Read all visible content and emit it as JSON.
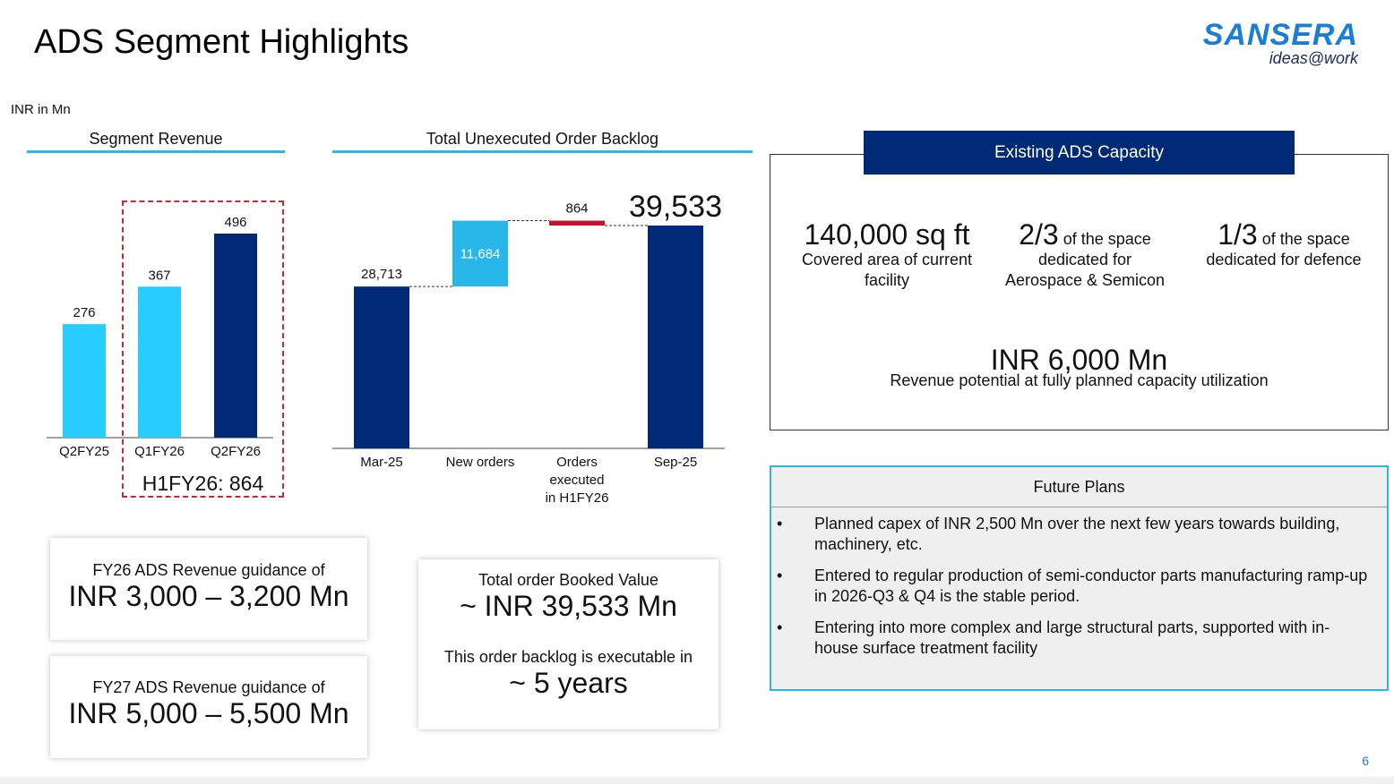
{
  "title": "ADS Segment Highlights",
  "logo": {
    "main": "SANSERA",
    "sub": "ideas@work"
  },
  "unit_note": "INR in Mn",
  "segment_revenue": {
    "heading": "Segment Revenue",
    "highlight_label": "H1FY26: 864"
  },
  "backlog": {
    "heading": "Total Unexecuted Order Backlog"
  },
  "chart_data": [
    {
      "type": "bar",
      "title": "Segment Revenue",
      "categories": [
        "Q2FY25",
        "Q1FY26",
        "Q2FY26"
      ],
      "values": [
        276,
        367,
        496
      ],
      "value_labels": [
        "276",
        "367",
        "496"
      ],
      "colors": [
        "#29ccff",
        "#29ccff",
        "#002a75"
      ]
    },
    {
      "type": "waterfall",
      "title": "Total Unexecuted Order Backlog",
      "categories": [
        "Mar-25",
        "New orders",
        "Orders executed in H1FY26",
        "Sep-25"
      ],
      "category_lines": [
        [
          "Mar-25"
        ],
        [
          "New orders"
        ],
        [
          "Orders",
          "executed",
          "in H1FY26"
        ],
        [
          "Sep-25"
        ]
      ],
      "values": [
        28713,
        11684,
        -864,
        39533
      ],
      "value_labels": [
        "28,713",
        "11,684",
        "864",
        "39,533"
      ],
      "colors": [
        "#002a75",
        "#29b7ea",
        "#c8102e",
        "#002a75"
      ]
    }
  ],
  "guidance": [
    {
      "label": "FY26 ADS Revenue guidance of",
      "value": "INR 3,000 – 3,200 Mn"
    },
    {
      "label": "FY27 ADS Revenue guidance of",
      "value": "INR 5,000 – 5,500 Mn"
    }
  ],
  "order_card": {
    "label": "Total order Booked Value",
    "value": "~ INR 39,533 Mn",
    "label2": "This order backlog is executable in",
    "value2": "~ 5 years"
  },
  "capacity": {
    "heading": "Existing ADS Capacity",
    "cols": [
      {
        "big": "140,000 sq ft",
        "inline": "",
        "line1": "Covered area of current",
        "line2": "facility"
      },
      {
        "big": "2/3",
        "inline": " of the space",
        "line1": "dedicated for",
        "line2": "Aerospace & Semicon"
      },
      {
        "big": "1/3",
        "inline": " of the space",
        "line1": "dedicated for defence",
        "line2": ""
      }
    ],
    "potential_value": "INR 6,000 Mn",
    "potential_label": "Revenue potential at fully planned capacity utilization"
  },
  "future_plans": {
    "heading": "Future Plans",
    "items": [
      "Planned capex of INR 2,500 Mn over the next few years towards building, machinery, etc.",
      "Entered to regular production of semi-conductor parts manufacturing ramp-up in 2026-Q3 & Q4 is the stable period.",
      "Entering into more complex and large structural parts, supported with in-house surface treatment facility"
    ]
  },
  "page_number": "6"
}
